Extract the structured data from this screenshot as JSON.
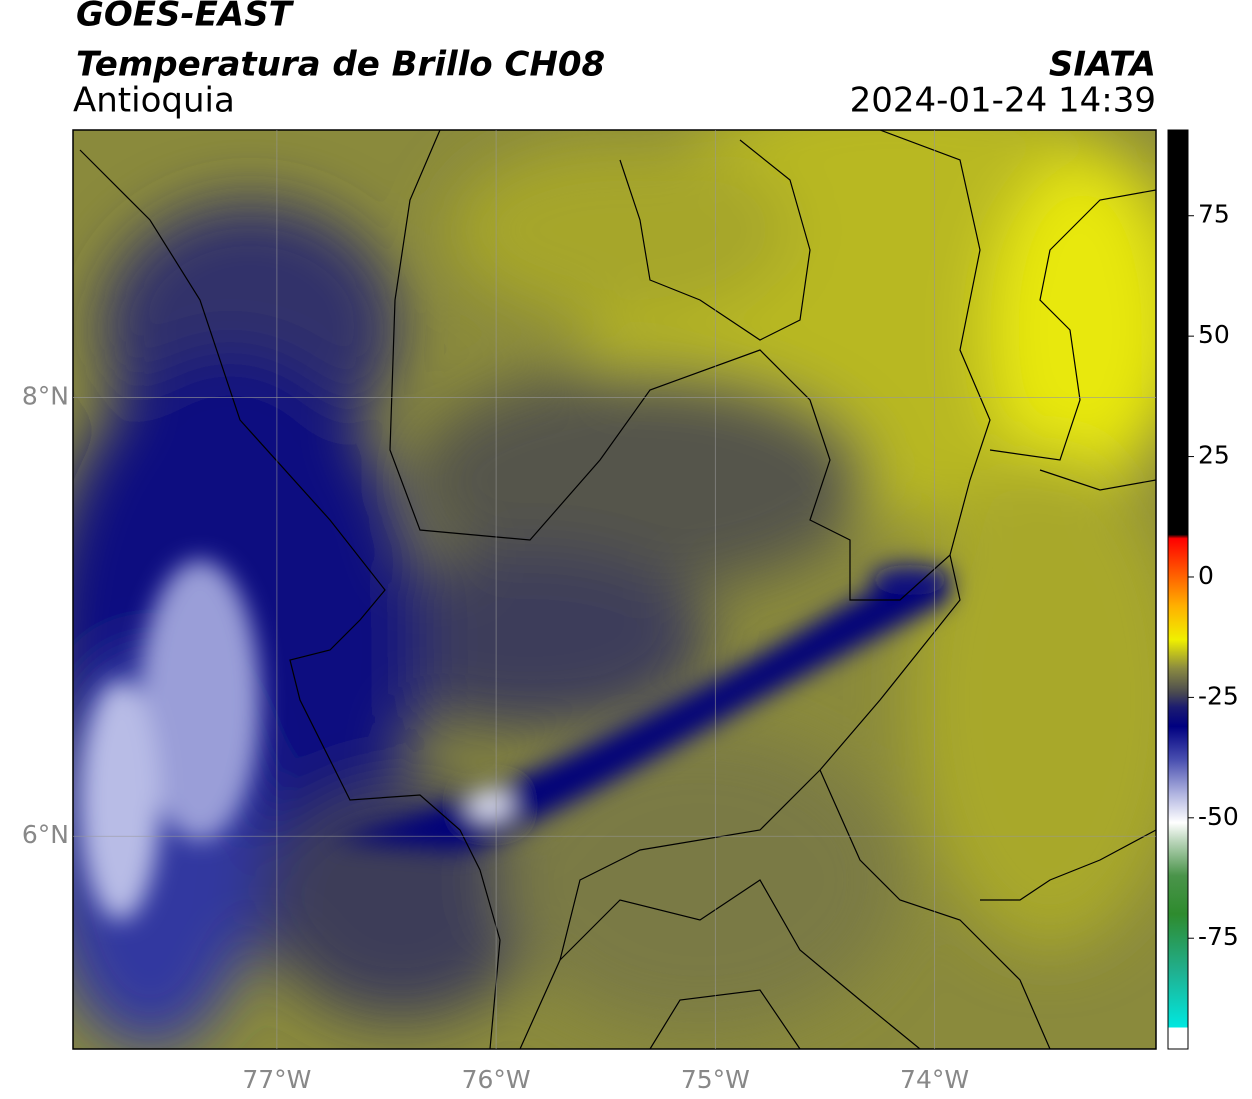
{
  "chart_data": {
    "type": "map",
    "title": "GOES-EAST",
    "subtitle": "Temperatura de Brillo CH08",
    "region": "Antioquia",
    "source": "SIATA",
    "timestamp": "2024-01-24 14:39",
    "xlim": [
      -77.93,
      -72.99
    ],
    "ylim": [
      5.03,
      9.22
    ],
    "xticks": [
      {
        "value": -77,
        "label": "77°W"
      },
      {
        "value": -76,
        "label": "76°W"
      },
      {
        "value": -75,
        "label": "75°W"
      },
      {
        "value": -74,
        "label": "74°W"
      }
    ],
    "yticks": [
      {
        "value": 6,
        "label": "6°N"
      },
      {
        "value": 8,
        "label": "8°N"
      }
    ],
    "grid": true,
    "colorbar": {
      "lim": [
        -98,
        92.8
      ],
      "ticks": [
        -75,
        -50,
        -25,
        0,
        25,
        50,
        75
      ],
      "stops": [
        {
          "value": -98,
          "color": "#ffffff"
        },
        {
          "value": -93.5,
          "color": "#ffffff"
        },
        {
          "value": -93.5,
          "color": "#00e8e0"
        },
        {
          "value": -82,
          "color": "#20b090"
        },
        {
          "value": -70,
          "color": "#2e8b2e"
        },
        {
          "value": -62,
          "color": "#4a944a"
        },
        {
          "value": -55,
          "color": "#b8d4b8"
        },
        {
          "value": -51,
          "color": "#ffffff"
        },
        {
          "value": -45,
          "color": "#b0b4e0"
        },
        {
          "value": -38,
          "color": "#4a50b0"
        },
        {
          "value": -31,
          "color": "#000080"
        },
        {
          "value": -27,
          "color": "#1c1c70"
        },
        {
          "value": -24,
          "color": "#4a4a50"
        },
        {
          "value": -19,
          "color": "#8a8a40"
        },
        {
          "value": -13,
          "color": "#f0f000"
        },
        {
          "value": -6,
          "color": "#ffb000"
        },
        {
          "value": 8,
          "color": "#ff0000"
        },
        {
          "value": 8.8,
          "color": "#000000"
        },
        {
          "value": 92.8,
          "color": "#000000"
        }
      ]
    }
  }
}
